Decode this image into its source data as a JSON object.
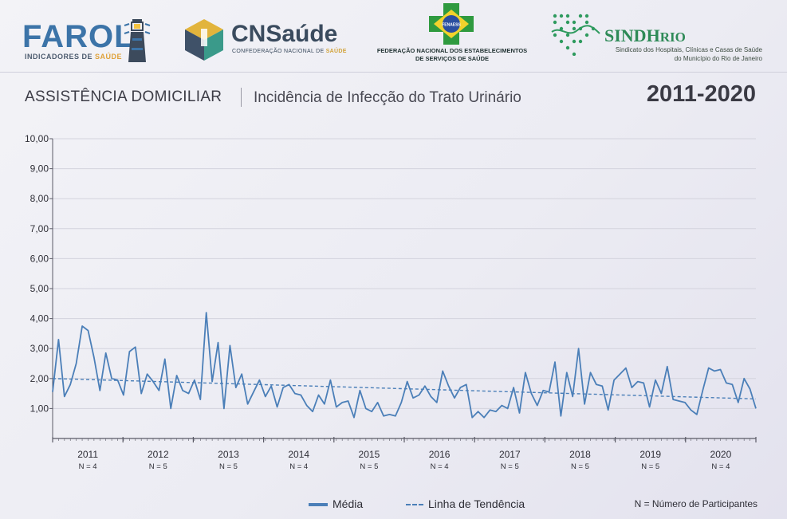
{
  "logos": {
    "farol": {
      "word": "FAROL",
      "sub_a": "INDICADORES DE ",
      "sub_b": "SAÚDE"
    },
    "cnsaude": {
      "word": "CNSaúde",
      "sub_a": "CONFEDERAÇÃO NACIONAL DE ",
      "sub_b": "SAÚDE"
    },
    "fenaess": {
      "badge": "FENAESS",
      "line1": "FEDERAÇÃO NACIONAL DOS ESTABELECIMENTOS",
      "line2": "DE SERVIÇOS DE SAÚDE"
    },
    "sindhrio": {
      "word_a": "SINDH",
      "word_b": "RIO",
      "line1": "Sindicato dos Hospitais, Clínicas e Casas de Saúde",
      "line2": "do Município do Rio de Janeiro"
    }
  },
  "header": {
    "title": "ASSISTÊNCIA DOMICILIAR",
    "subtitle": "Incidência de Infecção do Trato Urinário",
    "period": "2011-2020"
  },
  "colors": {
    "series": "#4b7fb8",
    "trend": "#4b7fb8",
    "grid": "#d3d3dd",
    "axis": "#5a5a66"
  },
  "chart_data": {
    "type": "line",
    "y_tick_labels": [
      "1,00",
      "2,00",
      "3,00",
      "4,00",
      "5,00",
      "6,00",
      "7,00",
      "8,00",
      "9,00",
      "10,00"
    ],
    "ylim": [
      0,
      10
    ],
    "grid": "horizontal",
    "years": [
      "2011",
      "2012",
      "2013",
      "2014",
      "2015",
      "2016",
      "2017",
      "2018",
      "2019",
      "2020"
    ],
    "participants": [
      "N = 4",
      "N = 5",
      "N = 5",
      "N = 4",
      "N = 5",
      "N = 4",
      "N = 5",
      "N = 5",
      "N = 5",
      "N = 4"
    ],
    "series": [
      {
        "name": "Média",
        "style": "solid",
        "values": [
          1.55,
          3.3,
          1.4,
          1.8,
          2.5,
          3.75,
          3.6,
          2.7,
          1.6,
          2.85,
          2.0,
          1.95,
          1.45,
          2.9,
          3.05,
          1.5,
          2.15,
          1.9,
          1.6,
          2.65,
          1.0,
          2.1,
          1.6,
          1.5,
          1.95,
          1.3,
          4.2,
          1.9,
          3.2,
          1.0,
          3.1,
          1.7,
          2.15,
          1.15,
          1.55,
          1.95,
          1.4,
          1.75,
          1.05,
          1.7,
          1.8,
          1.5,
          1.45,
          1.1,
          0.9,
          1.45,
          1.15,
          1.95,
          1.05,
          1.2,
          1.25,
          0.7,
          1.6,
          1.0,
          0.9,
          1.2,
          0.75,
          0.8,
          0.75,
          1.2,
          1.9,
          1.35,
          1.45,
          1.75,
          1.4,
          1.2,
          2.25,
          1.75,
          1.35,
          1.7,
          1.8,
          0.7,
          0.9,
          0.7,
          0.95,
          0.9,
          1.1,
          1.0,
          1.7,
          0.85,
          2.2,
          1.5,
          1.1,
          1.6,
          1.55,
          2.55,
          0.75,
          2.2,
          1.4,
          3.0,
          1.15,
          2.2,
          1.8,
          1.75,
          0.95,
          1.95,
          2.15,
          2.35,
          1.7,
          1.9,
          1.85,
          1.05,
          1.95,
          1.5,
          2.4,
          1.3,
          1.25,
          1.2,
          0.95,
          0.8,
          1.6,
          2.35,
          2.25,
          2.3,
          1.85,
          1.8,
          1.2,
          2.0,
          1.65,
          1.0
        ]
      },
      {
        "name": "Linha de Tendência",
        "style": "dashed",
        "values": [
          2.0,
          1.32
        ]
      }
    ]
  },
  "legend": {
    "media": "Média",
    "trend": "Linha de Tendência",
    "note": "N = Número de Participantes"
  }
}
